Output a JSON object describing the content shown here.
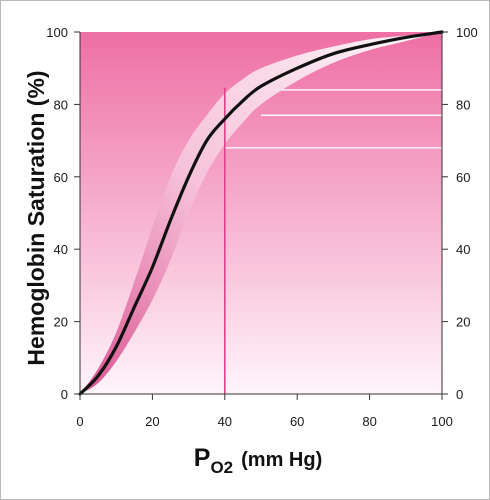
{
  "chart_data": {
    "type": "line",
    "ylabel": "Hemoglobin Saturation (%)",
    "xlabel": {
      "main": "P",
      "sub": "O2",
      "units": "(mm Hg)"
    },
    "xlim": [
      0,
      100
    ],
    "ylim": [
      0,
      100
    ],
    "x_ticks": [
      0,
      20,
      40,
      60,
      80,
      100
    ],
    "y_ticks": [
      0,
      20,
      40,
      60,
      80,
      100
    ],
    "y_ticks_right": [
      0,
      20,
      40,
      60,
      80,
      100
    ],
    "series": [
      {
        "x": [
          0,
          5,
          10,
          15,
          20,
          25,
          30,
          35,
          40,
          45,
          50,
          60,
          70,
          80,
          90,
          100
        ],
        "y": [
          0,
          5,
          13,
          24,
          35,
          48,
          60,
          70,
          76,
          81,
          85,
          90,
          94,
          96.5,
          98.5,
          100
        ]
      }
    ],
    "band": {
      "x": [
        0,
        5,
        10,
        15,
        20,
        25,
        30,
        35,
        40,
        45,
        50,
        60,
        70,
        80,
        90,
        100
      ],
      "upper": [
        0,
        7,
        17,
        31,
        46,
        60,
        70,
        77,
        83,
        87,
        90,
        93.5,
        96,
        98,
        99,
        100
      ],
      "lower": [
        0,
        3,
        9,
        17,
        26,
        37,
        50,
        61,
        69,
        75,
        80,
        86.5,
        91.5,
        95,
        97.5,
        100
      ]
    },
    "reference_vertical_x": 40,
    "reference_horizontal_y": [
      84,
      77,
      68
    ]
  }
}
